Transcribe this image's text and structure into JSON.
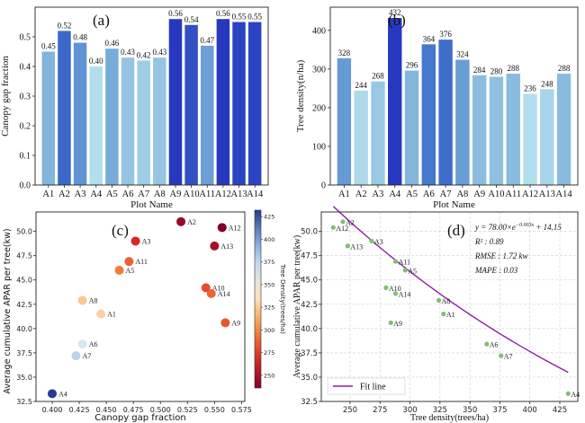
{
  "chart_data": [
    {
      "panel": "(a)",
      "type": "bar",
      "xlabel": "Plot Name",
      "ylabel": "Canopy gap fraction",
      "ylim": [
        0,
        0.6
      ],
      "yticks": [
        "0.0",
        "0.1",
        "0.2",
        "0.3",
        "0.4",
        "0.5"
      ],
      "categories": [
        "A1",
        "A2",
        "A3",
        "A4",
        "A5",
        "A6",
        "A7",
        "A8",
        "A9",
        "A10",
        "A11",
        "A12",
        "A13",
        "A14"
      ],
      "values": [
        0.45,
        0.52,
        0.48,
        0.4,
        0.46,
        0.43,
        0.42,
        0.43,
        0.56,
        0.54,
        0.47,
        0.56,
        0.55,
        0.55
      ],
      "value_labels": [
        "0.45",
        "0.52",
        "0.48",
        "0.40",
        "0.46",
        "0.43",
        "0.42",
        "0.43",
        "0.56",
        "0.54",
        "0.47",
        "0.56",
        "0.55",
        "0.55"
      ],
      "colormap": "Blues"
    },
    {
      "panel": "(b)",
      "type": "bar",
      "xlabel": "Plot Name",
      "ylabel": "Tree density(n/ha)",
      "ylim": [
        0,
        460
      ],
      "yticks": [
        "0",
        "100",
        "200",
        "300",
        "400"
      ],
      "categories": [
        "A1",
        "A2",
        "A3",
        "A4",
        "A5",
        "A6",
        "A7",
        "A8",
        "A9",
        "A10",
        "A11",
        "A12",
        "A13",
        "A14"
      ],
      "values": [
        328,
        244,
        268,
        432,
        296,
        364,
        376,
        324,
        284,
        280,
        288,
        236,
        248,
        288
      ],
      "value_labels": [
        "328",
        "244",
        "268",
        "432",
        "296",
        "364",
        "376",
        "324",
        "284",
        "280",
        "288",
        "236",
        "248",
        "288"
      ],
      "colormap": "Blues"
    },
    {
      "panel": "(c)",
      "type": "scatter",
      "xlabel": "Canopy gap fraction",
      "ylabel": "Average cumulative APAR per tree(kw)",
      "xlim": [
        0.385,
        0.578
      ],
      "ylim": [
        32.5,
        52.0
      ],
      "xticks": [
        "0.400",
        "0.425",
        "0.450",
        "0.475",
        "0.500",
        "0.525",
        "0.550",
        "0.575"
      ],
      "yticks": [
        "32.5",
        "35.0",
        "37.5",
        "40.0",
        "42.5",
        "45.0",
        "47.5",
        "50.0"
      ],
      "colorbar_label": "Tree Density(trees/ha)",
      "colorbar_range": [
        236,
        432
      ],
      "colorbar_ticks": [
        "250",
        "275",
        "300",
        "325",
        "350",
        "375",
        "400",
        "425"
      ],
      "points": [
        {
          "label": "A1",
          "x": 0.445,
          "y": 41.5,
          "c": 328
        },
        {
          "label": "A2",
          "x": 0.519,
          "y": 51.0,
          "c": 244
        },
        {
          "label": "A3",
          "x": 0.477,
          "y": 49.0,
          "c": 268
        },
        {
          "label": "A4",
          "x": 0.4,
          "y": 33.3,
          "c": 432
        },
        {
          "label": "A5",
          "x": 0.462,
          "y": 46.0,
          "c": 296
        },
        {
          "label": "A6",
          "x": 0.428,
          "y": 38.4,
          "c": 364
        },
        {
          "label": "A7",
          "x": 0.422,
          "y": 37.2,
          "c": 376
        },
        {
          "label": "A8",
          "x": 0.428,
          "y": 42.9,
          "c": 324
        },
        {
          "label": "A9",
          "x": 0.56,
          "y": 40.6,
          "c": 284
        },
        {
          "label": "A10",
          "x": 0.542,
          "y": 44.2,
          "c": 280
        },
        {
          "label": "A11",
          "x": 0.471,
          "y": 46.9,
          "c": 288
        },
        {
          "label": "A12",
          "x": 0.557,
          "y": 50.4,
          "c": 236
        },
        {
          "label": "A13",
          "x": 0.55,
          "y": 48.5,
          "c": 248
        },
        {
          "label": "A14",
          "x": 0.547,
          "y": 43.6,
          "c": 288
        }
      ]
    },
    {
      "panel": "(d)",
      "type": "scatter",
      "xlabel": "Tree density(trees/ha)",
      "ylabel": "Average cumulative APAR per tree(kw)",
      "xlim": [
        226,
        440
      ],
      "ylim": [
        32.5,
        52.0
      ],
      "xticks": [
        "250",
        "275",
        "300",
        "325",
        "350",
        "375",
        "400",
        "425"
      ],
      "yticks": [
        "32.5",
        "35.0",
        "37.5",
        "40.0",
        "42.5",
        "45.0",
        "47.5",
        "50.0"
      ],
      "legend": {
        "label": "Fit line",
        "position": "lower-left"
      },
      "annotations": {
        "equation": "y = 78.00×e",
        "equation_exp": "−0.003x",
        "equation_tail": " + 14.15",
        "r2": "R² : 0.89",
        "rmse": "RMSE : 1.72 kw",
        "mape": "MAPE : 0.03"
      },
      "fit": {
        "a": 78.0,
        "b": -0.003,
        "c": 14.15,
        "x_range": [
          236,
          432
        ],
        "color": "#8b1fa8"
      },
      "points": [
        {
          "label": "A1",
          "x": 328,
          "y": 41.5
        },
        {
          "label": "A2",
          "x": 244,
          "y": 51.0
        },
        {
          "label": "A3",
          "x": 268,
          "y": 49.0
        },
        {
          "label": "A4",
          "x": 432,
          "y": 33.3
        },
        {
          "label": "A5",
          "x": 296,
          "y": 46.0
        },
        {
          "label": "A6",
          "x": 364,
          "y": 38.4
        },
        {
          "label": "A7",
          "x": 376,
          "y": 37.2
        },
        {
          "label": "A8",
          "x": 324,
          "y": 42.9
        },
        {
          "label": "A9",
          "x": 284,
          "y": 40.6
        },
        {
          "label": "A10",
          "x": 280,
          "y": 44.2
        },
        {
          "label": "A11",
          "x": 288,
          "y": 46.9
        },
        {
          "label": "A12",
          "x": 236,
          "y": 50.4
        },
        {
          "label": "A13",
          "x": 248,
          "y": 48.5
        },
        {
          "label": "A14",
          "x": 288,
          "y": 43.6
        }
      ],
      "point_color": "#7fbf6e"
    }
  ]
}
